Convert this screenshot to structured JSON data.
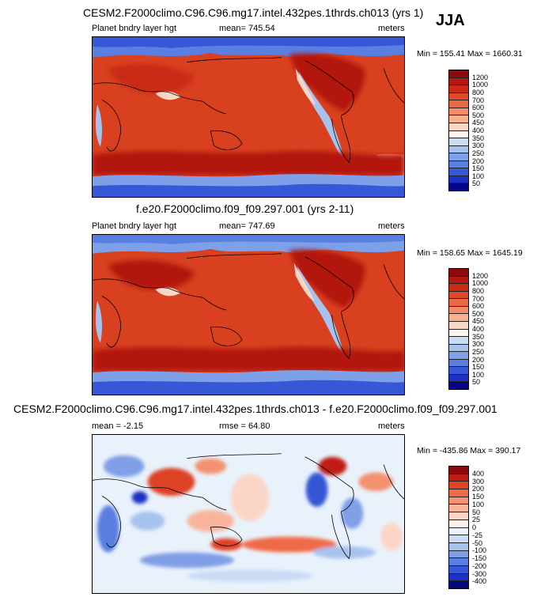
{
  "season": "JJA",
  "panels": [
    {
      "title": "CESM2.F2000climo.C96.C96.mg17.intel.432pes.1thrds.ch013 (yrs 1)",
      "left_label": "Planet bndry layer hgt",
      "center_label": "mean= 745.54",
      "right_label": "meters",
      "minmax": "Min = 155.41 Max = 1660.31",
      "colorbar_labels": [
        "1200",
        "1000",
        "800",
        "700",
        "600",
        "500",
        "450",
        "400",
        "350",
        "300",
        "250",
        "200",
        "150",
        "100",
        "50"
      ],
      "colors": [
        "#8b0a0a",
        "#b3170f",
        "#c92b17",
        "#dc4a2a",
        "#ea6a45",
        "#f28d67",
        "#f8b08f",
        "#fad7c4",
        "#fdf4ee",
        "#c9dcf4",
        "#a7c2ee",
        "#7ea0e8",
        "#5a7fe2",
        "#3657d6",
        "#1f31c4",
        "#07068a"
      ]
    },
    {
      "title": "f.e20.F2000climo.f09_f09.297.001 (yrs 2-11)",
      "left_label": "Planet bndry layer hgt",
      "center_label": "mean= 747.69",
      "right_label": "meters",
      "minmax": "Min = 158.65 Max = 1645.19",
      "colorbar_labels": [
        "1200",
        "1000",
        "800",
        "700",
        "600",
        "500",
        "450",
        "400",
        "350",
        "300",
        "250",
        "200",
        "150",
        "100",
        "50"
      ],
      "colors": [
        "#8b0a0a",
        "#b3170f",
        "#c92b17",
        "#dc4a2a",
        "#ea6a45",
        "#f28d67",
        "#f8b08f",
        "#fad7c4",
        "#fdf4ee",
        "#c9dcf4",
        "#a7c2ee",
        "#7ea0e8",
        "#5a7fe2",
        "#3657d6",
        "#1f31c4",
        "#07068a"
      ]
    },
    {
      "title": "CESM2.F2000climo.C96.C96.mg17.intel.432pes.1thrds.ch013 - f.e20.F2000climo.f09_f09.297.001",
      "left_label": "mean =  -2.15",
      "center_label": "rmse =  64.80",
      "right_label": "meters",
      "minmax": "Min = -435.86 Max = 390.17",
      "colorbar_labels": [
        "400",
        "300",
        "200",
        "150",
        "100",
        "50",
        "25",
        "0",
        "-25",
        "-50",
        "-100",
        "-150",
        "-200",
        "-300",
        "-400"
      ],
      "colors": [
        "#8b0a0a",
        "#c01d14",
        "#de4328",
        "#ef6a47",
        "#f49171",
        "#f8b59b",
        "#fbd6c7",
        "#fdf0ea",
        "#e9f2fb",
        "#c9dcf4",
        "#a8c2ee",
        "#809fe7",
        "#5a7ee0",
        "#3557d4",
        "#1d30c2",
        "#06067f"
      ]
    }
  ]
}
